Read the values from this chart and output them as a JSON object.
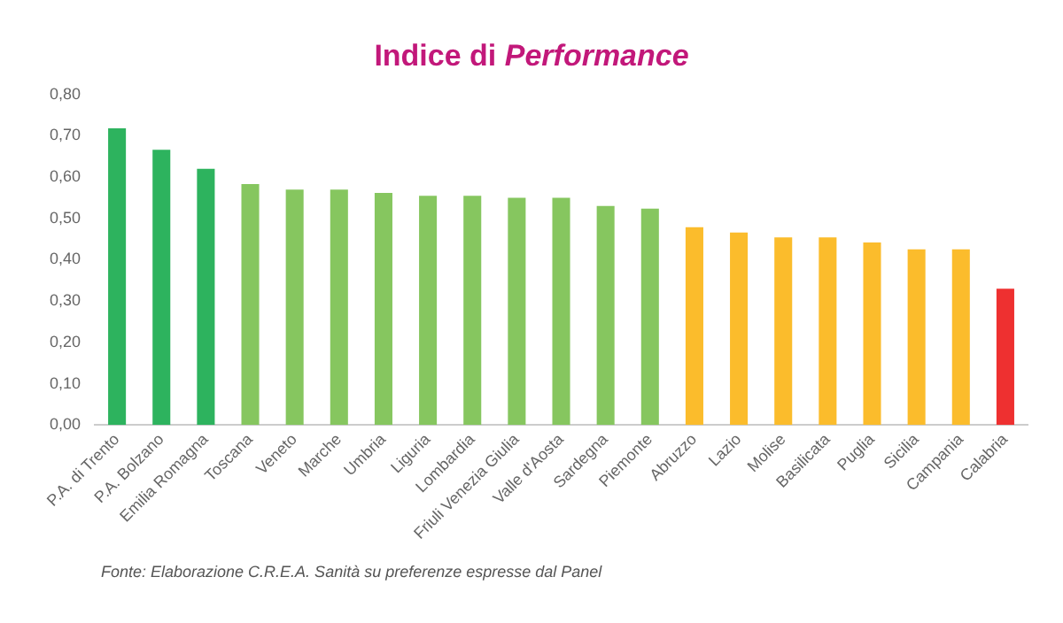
{
  "chart_data": {
    "type": "bar",
    "title": "Indice di Performance",
    "categories": [
      "P.A. di Trento",
      "P.A. Bolzano",
      "Emilia Romagna",
      "Toscana",
      "Veneto",
      "Marche",
      "Umbria",
      "Liguria",
      "Lombardia",
      "Friuli Venezia Giulia",
      "Valle d'Aosta",
      "Sardegna",
      "Piemonte",
      "Abruzzo",
      "Lazio",
      "Molise",
      "Basilicata",
      "Puglia",
      "Sicilia",
      "Campania",
      "Calabria"
    ],
    "values": [
      0.718,
      0.666,
      0.62,
      0.583,
      0.57,
      0.57,
      0.562,
      0.555,
      0.555,
      0.55,
      0.55,
      0.53,
      0.524,
      0.479,
      0.466,
      0.454,
      0.454,
      0.442,
      0.425,
      0.425,
      0.33
    ],
    "colors": [
      "#2db35e",
      "#2db35e",
      "#2db35e",
      "#86c65f",
      "#86c65f",
      "#86c65f",
      "#86c65f",
      "#86c65f",
      "#86c65f",
      "#86c65f",
      "#86c65f",
      "#86c65f",
      "#86c65f",
      "#fbbc2c",
      "#fbbc2c",
      "#fbbc2c",
      "#fbbc2c",
      "#fbbc2c",
      "#fbbc2c",
      "#fbbc2c",
      "#ee3030"
    ],
    "ylim": [
      0,
      0.8
    ],
    "yticks": [
      {
        "value": 0,
        "label": "0,00"
      },
      {
        "value": 0.1,
        "label": "0,10"
      },
      {
        "value": 0.2,
        "label": "0,20"
      },
      {
        "value": 0.3,
        "label": "0,30"
      },
      {
        "value": 0.4,
        "label": "0,40"
      },
      {
        "value": 0.5,
        "label": "0,50"
      },
      {
        "value": 0.6,
        "label": "0,60"
      },
      {
        "value": 0.7,
        "label": "0,70"
      },
      {
        "value": 0.8,
        "label": "0,80"
      }
    ],
    "grid": false,
    "legend": false,
    "annotations": [
      "Fonte: Elaborazione C.R.E.A. Sanità su preferenze espresse dal Panel"
    ]
  }
}
